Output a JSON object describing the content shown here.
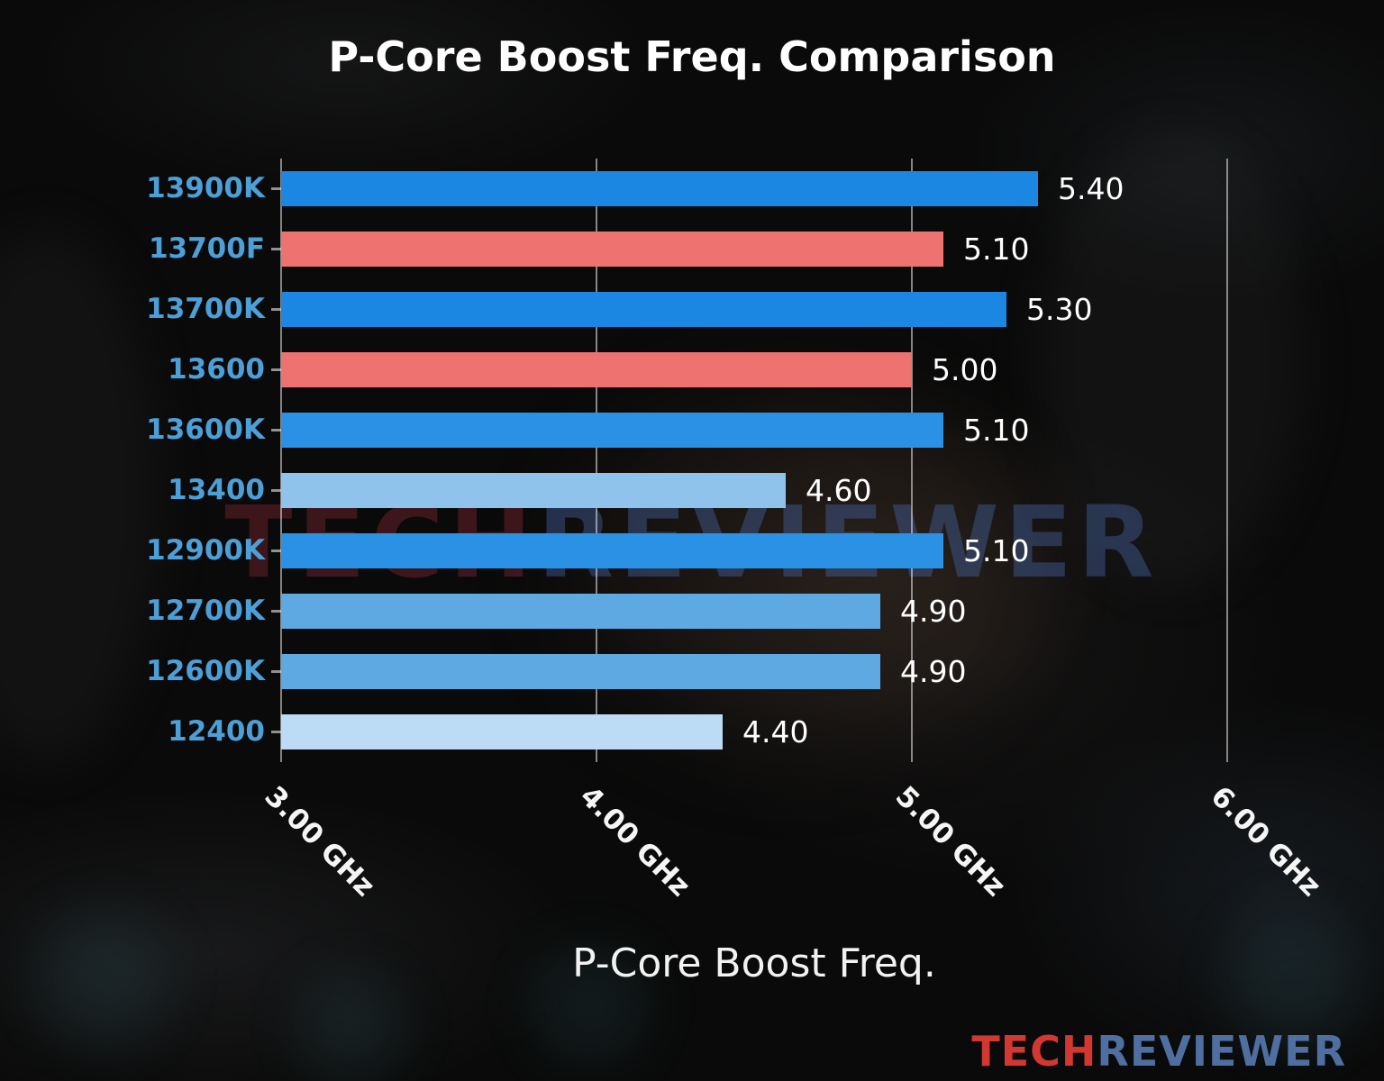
{
  "chart_data": {
    "type": "bar",
    "orientation": "horizontal",
    "title": "P-Core Boost Freq. Comparison",
    "xlabel": "P-Core Boost Freq.",
    "ylabel": "",
    "categories": [
      "13900K",
      "13700F",
      "13700K",
      "13600",
      "13600K",
      "13400",
      "12900K",
      "12700K",
      "12600K",
      "12400"
    ],
    "values": [
      5.4,
      5.1,
      5.3,
      5.0,
      5.1,
      4.6,
      5.1,
      4.9,
      4.9,
      4.4
    ],
    "value_labels": [
      "5.40",
      "5.10",
      "5.30",
      "5.00",
      "5.10",
      "4.60",
      "5.10",
      "4.90",
      "4.90",
      "4.40"
    ],
    "bar_colors": [
      "#1b87e3",
      "#ee7270",
      "#1b87e3",
      "#ee7270",
      "#2a91e5",
      "#8fc3ec",
      "#2a91e5",
      "#5ea9e2",
      "#5ea9e2",
      "#bcdcf5"
    ],
    "xlim": [
      3.0,
      6.0
    ],
    "x_ticks": [
      {
        "label": "3.00 GHz",
        "value": 3.0
      },
      {
        "label": "4.00 GHz",
        "value": 4.0
      },
      {
        "label": "5.00 GHz",
        "value": 5.0
      },
      {
        "label": "6.00 GHz",
        "value": 6.0
      }
    ],
    "grid": true,
    "legend": "none",
    "unit": "GHz"
  },
  "watermark": {
    "part1": "TECH",
    "part2": "REVIEWER"
  },
  "brand": {
    "part1": "TECH",
    "part2": "REVIEWER"
  },
  "colors": {
    "title": "#ffffff",
    "category_label": "#4d9fd8",
    "value_label": "#ffffff",
    "gridline": "rgba(235,235,235,0.55)",
    "brand_tech": "#d23732",
    "brand_reviewer": "#4f6fa1",
    "watermark_tech": "rgba(125,38,50,0.45)",
    "watermark_reviewer": "rgba(72,102,168,0.42)",
    "background": "#0a0a0a"
  }
}
